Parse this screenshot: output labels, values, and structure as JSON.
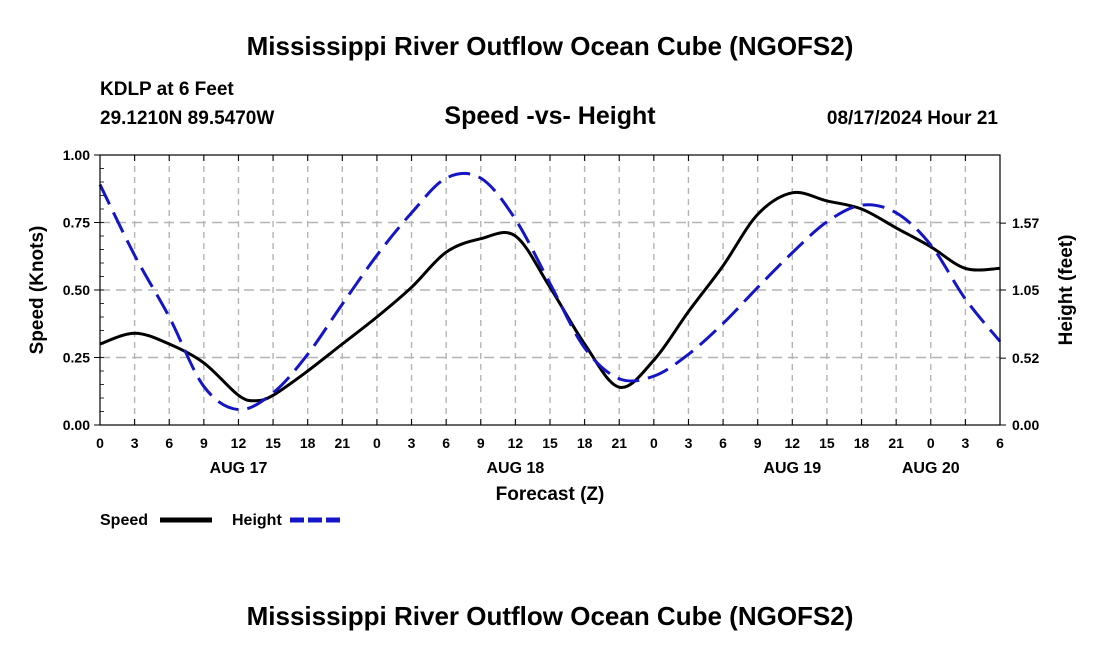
{
  "page_title": "Mississippi River Outflow Ocean Cube (NGOFS2)",
  "footer_title": "Mississippi River Outflow Ocean Cube (NGOFS2)",
  "station": {
    "name": "KDLP at 6 Feet",
    "coords": "29.1210N  89.5470W"
  },
  "chart_subtitle": "Speed -vs- Height",
  "timestamp": "08/17/2024 Hour 21",
  "colors": {
    "speed": "#000000",
    "height": "#1515c8",
    "grid": "#b4b4b4"
  },
  "chart_data": {
    "type": "line",
    "title": "Speed -vs- Height",
    "xlabel": "Forecast (Z)",
    "ylabel": "Speed (Knots)",
    "y2label": "Height (feet)",
    "x_range_hours": [
      0,
      78
    ],
    "x_tick_step_hours": 3,
    "x_tick_labels": [
      "0",
      "3",
      "6",
      "9",
      "12",
      "15",
      "18",
      "21",
      "0",
      "3",
      "6",
      "9",
      "12",
      "15",
      "18",
      "21",
      "0",
      "3",
      "6",
      "9",
      "12",
      "15",
      "18",
      "21",
      "0",
      "3",
      "6"
    ],
    "date_labels": [
      {
        "hour": 12,
        "label": "AUG 17"
      },
      {
        "hour": 36,
        "label": "AUG 18"
      },
      {
        "hour": 60,
        "label": "AUG 19"
      },
      {
        "hour": 72,
        "label": "AUG 20"
      }
    ],
    "ylim": [
      0,
      1.0
    ],
    "y_ticks": [
      "0.00",
      "0.25",
      "0.50",
      "0.75",
      "1.00"
    ],
    "y2lim": [
      0,
      2.1
    ],
    "y2_ticks": [
      {
        "value": 0.0,
        "label": "0.00"
      },
      {
        "value": 0.52,
        "label": "0.52"
      },
      {
        "value": 1.05,
        "label": "1.05"
      },
      {
        "value": 1.57,
        "label": "1.57"
      }
    ],
    "grid": true,
    "legend_position": "bottom-left",
    "series": [
      {
        "name": "Speed",
        "axis": "left",
        "style": "solid",
        "x": [
          0,
          3,
          6,
          9,
          12,
          13.5,
          15,
          18,
          21,
          24,
          27,
          30,
          33,
          36,
          39,
          42,
          45,
          48,
          51,
          54,
          57,
          60,
          63,
          66,
          69,
          72,
          75,
          78
        ],
        "values": [
          0.3,
          0.34,
          0.3,
          0.23,
          0.11,
          0.09,
          0.11,
          0.2,
          0.3,
          0.4,
          0.51,
          0.64,
          0.69,
          0.7,
          0.51,
          0.3,
          0.14,
          0.24,
          0.42,
          0.59,
          0.78,
          0.86,
          0.83,
          0.8,
          0.73,
          0.66,
          0.58,
          0.58
        ]
      },
      {
        "name": "Height",
        "axis": "right",
        "style": "dashed",
        "x": [
          0,
          3,
          6,
          9,
          12,
          15,
          18,
          21,
          24,
          27,
          30,
          33,
          36,
          39,
          42,
          45,
          48,
          51,
          54,
          57,
          60,
          63,
          66,
          69,
          72,
          75,
          78
        ],
        "values": [
          1.87,
          1.32,
          0.84,
          0.3,
          0.12,
          0.25,
          0.55,
          0.94,
          1.32,
          1.65,
          1.92,
          1.92,
          1.6,
          1.1,
          0.6,
          0.36,
          0.38,
          0.55,
          0.79,
          1.07,
          1.34,
          1.58,
          1.71,
          1.65,
          1.4,
          0.98,
          0.65
        ]
      }
    ]
  },
  "legend": [
    {
      "label": "Speed",
      "color": "#000000",
      "style": "solid"
    },
    {
      "label": "Height",
      "color": "#1515c8",
      "style": "dashed"
    }
  ]
}
